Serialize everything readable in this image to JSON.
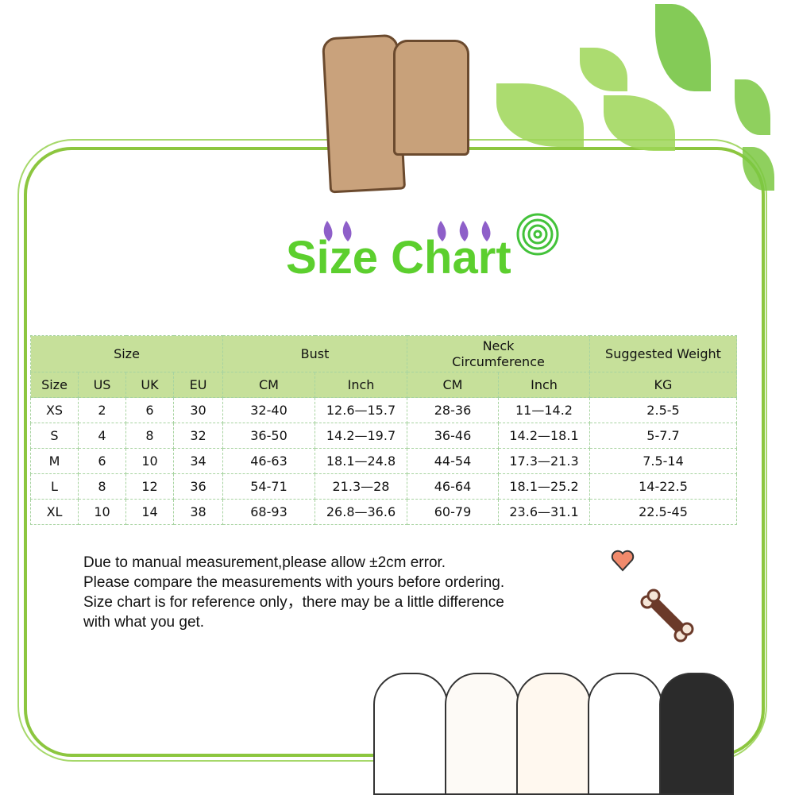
{
  "title": "Size Chart",
  "table": {
    "group_headers": [
      "Size",
      "Bust",
      "Neck Circumference",
      "Suggested Weight"
    ],
    "sub_headers": [
      "Size",
      "US",
      "UK",
      "EU",
      "CM",
      "Inch",
      "CM",
      "Inch",
      "KG"
    ],
    "rows": [
      [
        "XS",
        "2",
        "6",
        "30",
        "32-40",
        "12.6—15.7",
        "28-36",
        "11—14.2",
        "2.5-5"
      ],
      [
        "S",
        "4",
        "8",
        "32",
        "36-50",
        "14.2—19.7",
        "36-46",
        "14.2—18.1",
        "5-7.7"
      ],
      [
        "M",
        "6",
        "10",
        "34",
        "46-63",
        "18.1—24.8",
        "44-54",
        "17.3—21.3",
        "7.5-14"
      ],
      [
        "L",
        "8",
        "12",
        "36",
        "54-71",
        "21.3—28",
        "46-64",
        "18.1—25.2",
        "14-22.5"
      ],
      [
        "XL",
        "10",
        "14",
        "38",
        "68-93",
        "26.8—36.6",
        "60-79",
        "23.6—31.1",
        "22.5-45"
      ]
    ]
  },
  "notes": [
    "Due to manual measurement,please allow ±2cm error.",
    "Please compare the measurements with yours before ordering.",
    "Size chart is for reference only，there may be a little difference",
    "with what you get."
  ],
  "colors": {
    "frame": "#8cc63f",
    "title": "#5ccf2e",
    "header_bg": "#c6e09a"
  }
}
